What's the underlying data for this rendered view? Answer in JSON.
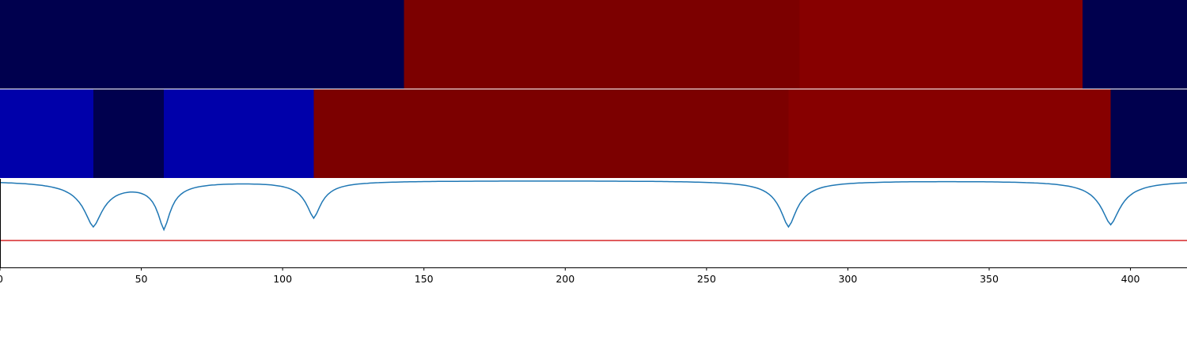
{
  "chart_data": {
    "type": "heatmap",
    "title": "",
    "xlabel": "",
    "ylabel": "",
    "xlim": [
      0,
      420
    ],
    "grid": false,
    "colors": {
      "dark_navy": "#00004e",
      "blue": "#0000aa",
      "dark_red": "#7c0000",
      "red": "#870000",
      "line_series": "#1f77b4",
      "threshold": "#d62728",
      "axis": "#000000",
      "separator": "#ffffff"
    },
    "bands": [
      {
        "segments": [
          {
            "start": 0,
            "end": 143,
            "color": "#00004e"
          },
          {
            "start": 143,
            "end": 283,
            "color": "#7c0000"
          },
          {
            "start": 283,
            "end": 383,
            "color": "#870000"
          },
          {
            "start": 383,
            "end": 420,
            "color": "#00004e"
          }
        ]
      },
      {
        "segments": [
          {
            "start": 0,
            "end": 33,
            "color": "#0000aa"
          },
          {
            "start": 33,
            "end": 58,
            "color": "#00004e"
          },
          {
            "start": 58,
            "end": 111,
            "color": "#0000aa"
          },
          {
            "start": 111,
            "end": 279,
            "color": "#7c0000"
          },
          {
            "start": 279,
            "end": 393,
            "color": "#870000"
          },
          {
            "start": 393,
            "end": 420,
            "color": "#00004e"
          }
        ]
      }
    ],
    "signal": {
      "ylim": [
        -1.3,
        0.02
      ],
      "baseline": 0,
      "threshold": -0.9,
      "dips": [
        {
          "x": 33,
          "depth": -0.67,
          "width": 4.5
        },
        {
          "x": 58,
          "depth": -0.69,
          "width": 3.0
        },
        {
          "x": 111,
          "depth": -0.55,
          "width": 3.5
        },
        {
          "x": 279,
          "depth": -0.69,
          "width": 4.0
        },
        {
          "x": 393,
          "depth": -0.66,
          "width": 4.5
        }
      ]
    },
    "x_ticks": [
      0,
      50,
      100,
      150,
      200,
      250,
      300,
      350,
      400
    ]
  }
}
